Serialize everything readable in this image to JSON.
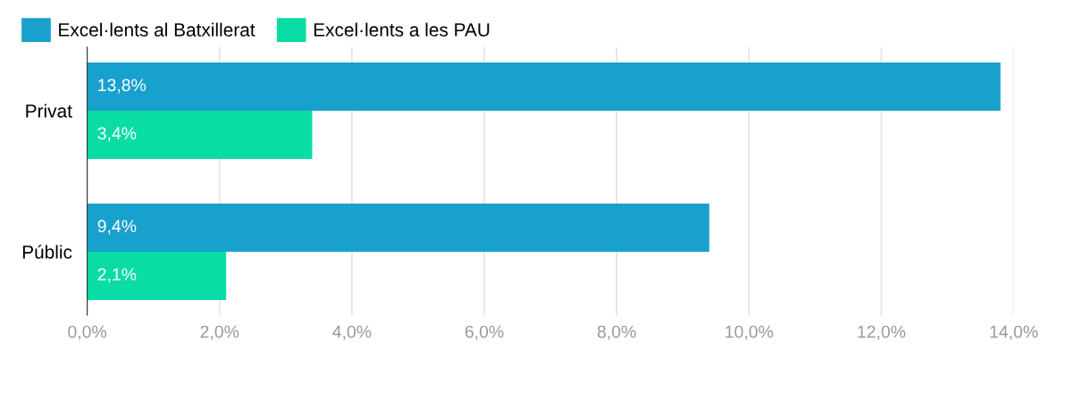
{
  "chart_data": {
    "type": "bar",
    "orientation": "horizontal",
    "categories": [
      "Privat",
      "Públic"
    ],
    "series": [
      {
        "name": "Excel·lents al Batxillerat",
        "color": "#18a1cd",
        "values": [
          13.8,
          9.4
        ],
        "value_labels": [
          "13,8%",
          "9,4%"
        ]
      },
      {
        "name": "Excel·lents a les PAU",
        "color": "#09dca4",
        "values": [
          3.4,
          2.1
        ],
        "value_labels": [
          "3,4%",
          "2,1%"
        ]
      }
    ],
    "xlim": [
      0,
      14
    ],
    "xticks": [
      {
        "value": 0,
        "label": "0,0%"
      },
      {
        "value": 2,
        "label": "2,0%"
      },
      {
        "value": 4,
        "label": "4,0%"
      },
      {
        "value": 6,
        "label": "6,0%"
      },
      {
        "value": 8,
        "label": "8,0%"
      },
      {
        "value": 10,
        "label": "10,0%"
      },
      {
        "value": 12,
        "label": "12,0%"
      },
      {
        "value": 14,
        "label": "14,0%"
      }
    ],
    "grid": "x",
    "legend": "top left"
  }
}
